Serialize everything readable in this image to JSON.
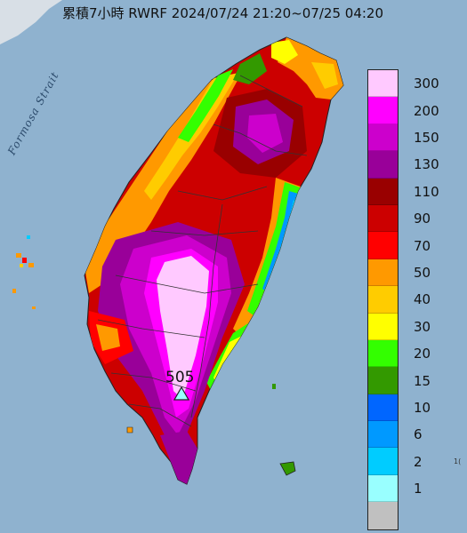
{
  "title": "累積7小時 RWRF 2024/07/24 21:20~07/25 04:20",
  "sea_label": "Formosa Strait",
  "max_value": "505",
  "legend": [
    {
      "label": "300",
      "color": "#ffc9ff"
    },
    {
      "label": "200",
      "color": "#ff00ff"
    },
    {
      "label": "150",
      "color": "#cc00cc"
    },
    {
      "label": "130",
      "color": "#990099"
    },
    {
      "label": "110",
      "color": "#990000"
    },
    {
      "label": "90",
      "color": "#cc0000"
    },
    {
      "label": "70",
      "color": "#ff0000"
    },
    {
      "label": "50",
      "color": "#ff9900"
    },
    {
      "label": "40",
      "color": "#ffcc00"
    },
    {
      "label": "30",
      "color": "#ffff00"
    },
    {
      "label": "20",
      "color": "#33ff00"
    },
    {
      "label": "15",
      "color": "#339900"
    },
    {
      "label": "10",
      "color": "#0066ff"
    },
    {
      "label": "6",
      "color": "#0099ff"
    },
    {
      "label": "2",
      "color": "#00ccff"
    },
    {
      "label": "1",
      "color": "#99ffff"
    },
    {
      "label": "",
      "color": "#c0c0c0"
    }
  ],
  "edge_label": "1("
}
